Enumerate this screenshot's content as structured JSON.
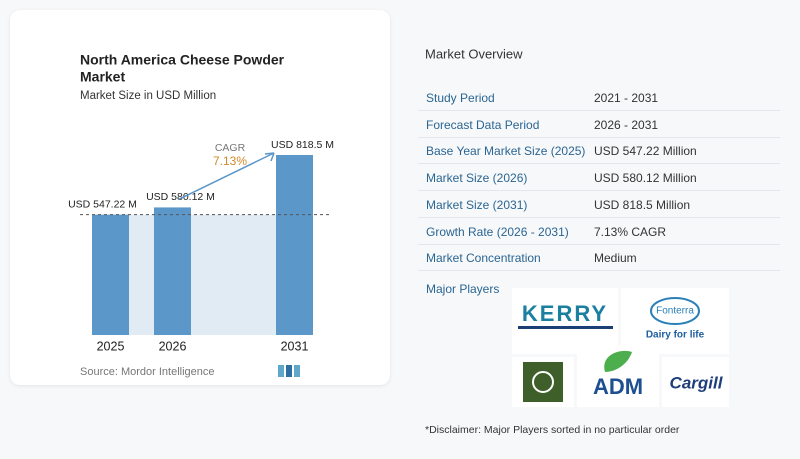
{
  "chart_data": {
    "type": "bar",
    "title": "North America Cheese Powder Market",
    "subtitle": "Market Size in USD Million",
    "categories": [
      "2025",
      "2026",
      "2031"
    ],
    "values": [
      547.22,
      580.12,
      818.5
    ],
    "value_labels": [
      "USD 547.22 M",
      "USD 580.12 M",
      "USD 818.5 M"
    ],
    "color": "#5b97c9",
    "annotation": {
      "label": "CAGR",
      "value": "7.13%"
    },
    "source": "Source: Mordor Intelligence"
  },
  "overview": {
    "title": "Market Overview",
    "rows": [
      [
        "Study Period",
        "2021 - 2031"
      ],
      [
        "Forecast Data Period",
        "2026 - 2031"
      ],
      [
        "Base Year Market Size (2025)",
        "USD 547.22 Million"
      ],
      [
        "Market Size (2026)",
        "USD 580.12 Million"
      ],
      [
        "Market Size (2031)",
        "USD 818.5 Million"
      ],
      [
        "Growth Rate (2026 - 2031)",
        "7.13% CAGR"
      ],
      [
        "Market Concentration",
        "Medium"
      ]
    ],
    "players_label": "Major Players",
    "players": [
      "KERRY",
      "Fonterra",
      "Dairy for life",
      "ADM",
      "Cargill"
    ],
    "disclaimer": "*Disclaimer: Major Players sorted in no particular order"
  }
}
